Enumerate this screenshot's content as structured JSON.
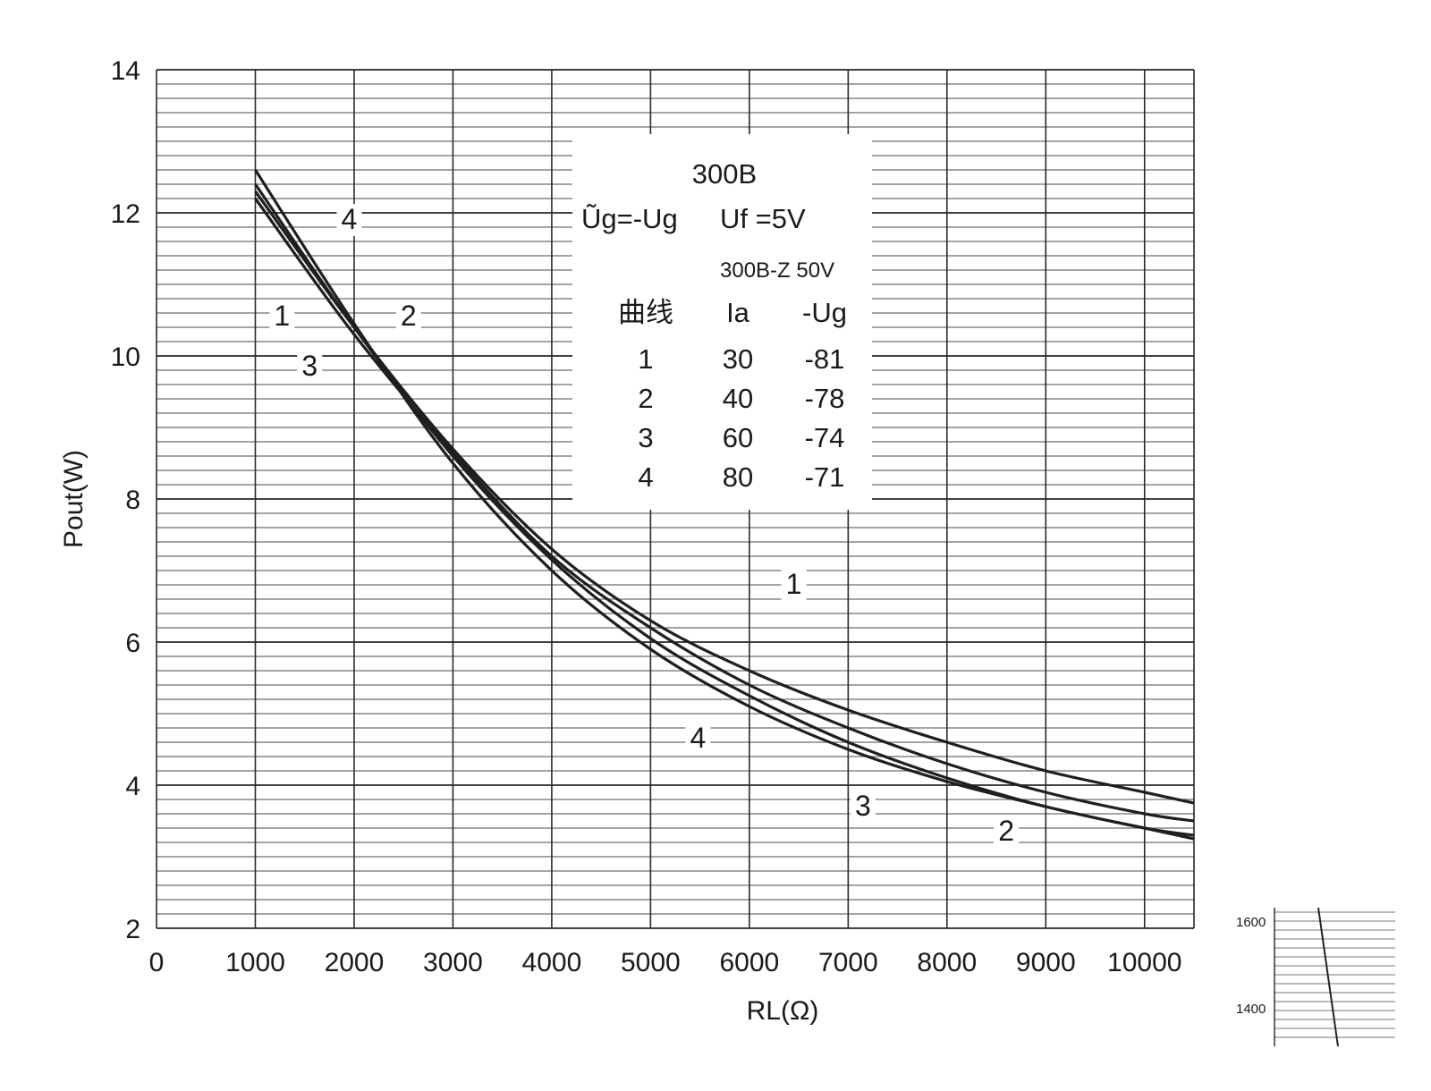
{
  "chart_data": {
    "type": "line",
    "title": "300B",
    "xlabel": "RL(Ω)",
    "ylabel": "Pout(W)",
    "xlim": [
      0,
      10500
    ],
    "ylim": [
      2,
      14
    ],
    "grid": true,
    "x_ticks": [
      "0",
      "1000",
      "2000",
      "3000",
      "4000",
      "5000",
      "6000",
      "7000",
      "8000",
      "9000",
      "10000"
    ],
    "y_ticks": [
      "2",
      "4",
      "6",
      "8",
      "10",
      "12",
      "14"
    ],
    "legend": {
      "position": "top-center",
      "line1_left": "Ũg=-Ug",
      "line1_right": "Uf =5V",
      "line2": "300B-Z  50V",
      "header": [
        "曲线",
        "Ia",
        "-Ug"
      ],
      "rows": [
        [
          "1",
          "30",
          "-81"
        ],
        [
          "2",
          "40",
          "-78"
        ],
        [
          "3",
          "60",
          "-74"
        ],
        [
          "4",
          "80",
          "-71"
        ]
      ]
    },
    "series": [
      {
        "name": "1",
        "x": [
          1000,
          2000,
          3000,
          4000,
          5000,
          6000,
          7000,
          8000,
          9000,
          10000,
          10500
        ],
        "y": [
          12.3,
          10.4,
          8.7,
          7.3,
          6.3,
          5.6,
          5.05,
          4.6,
          4.2,
          3.9,
          3.75
        ]
      },
      {
        "name": "2",
        "x": [
          1000,
          2000,
          3000,
          4000,
          5000,
          6000,
          7000,
          8000,
          9000,
          10000,
          10500
        ],
        "y": [
          12.4,
          10.4,
          8.6,
          7.15,
          6.05,
          5.25,
          4.6,
          4.1,
          3.7,
          3.4,
          3.25
        ]
      },
      {
        "name": "3",
        "x": [
          1000,
          2000,
          3000,
          4000,
          5000,
          6000,
          7000,
          8000,
          9000,
          10000,
          10500
        ],
        "y": [
          12.2,
          10.3,
          8.65,
          7.2,
          6.2,
          5.4,
          4.8,
          4.3,
          3.9,
          3.6,
          3.5
        ]
      },
      {
        "name": "4",
        "x": [
          1000,
          2000,
          3000,
          4000,
          5000,
          6000,
          7000,
          8000,
          9000,
          10000,
          10500
        ],
        "y": [
          12.6,
          10.45,
          8.5,
          7.0,
          5.9,
          5.1,
          4.5,
          4.05,
          3.7,
          3.4,
          3.3
        ]
      }
    ],
    "curve_labels": [
      {
        "text": "4",
        "x": 1950,
        "y": 11.8
      },
      {
        "text": "1",
        "x": 1270,
        "y": 10.45
      },
      {
        "text": "2",
        "x": 2550,
        "y": 10.45
      },
      {
        "text": "3",
        "x": 1550,
        "y": 9.75
      },
      {
        "text": "1",
        "x": 6450,
        "y": 6.7
      },
      {
        "text": "4",
        "x": 5480,
        "y": 4.55
      },
      {
        "text": "3",
        "x": 7150,
        "y": 3.6
      },
      {
        "text": "2",
        "x": 8600,
        "y": 3.25
      }
    ],
    "inset": {
      "y_ticks": [
        "1600",
        "1400"
      ]
    }
  }
}
